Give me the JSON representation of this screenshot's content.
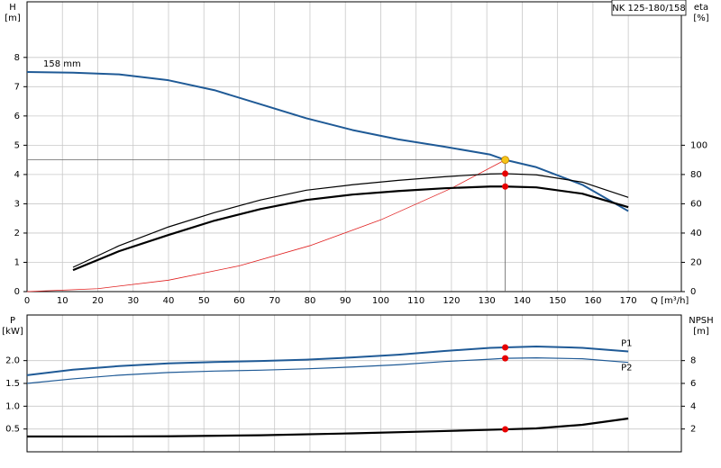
{
  "chart_data": [
    {
      "type": "line",
      "title": "NK 125-180/158",
      "xlabel": "Q [m³/h]",
      "ylabel": "H",
      "yunit": "[m]",
      "y2label": "eta",
      "y2unit": "[%]",
      "xlim": [
        0,
        185
      ],
      "xticks": [
        0,
        10,
        20,
        30,
        40,
        50,
        60,
        70,
        80,
        90,
        100,
        110,
        120,
        130,
        140,
        150,
        160,
        170
      ],
      "ylim": [
        0,
        9.9
      ],
      "yticks": [
        0,
        1,
        2,
        3,
        4,
        5,
        6,
        7,
        8
      ],
      "y2lim": [
        0,
        198
      ],
      "y2ticks": [
        0,
        20,
        40,
        60,
        80,
        100
      ],
      "grid": true,
      "duty_point": {
        "x": 135.2,
        "y": 4.5,
        "color": "#f5c518"
      },
      "series": [
        {
          "name": "158 mm",
          "name_position": "start-above",
          "color": "#1f5a96",
          "width": 2,
          "x": [
            0,
            13,
            26,
            40,
            53,
            66,
            79,
            92,
            105,
            118,
            131,
            135.2,
            144,
            157,
            170
          ],
          "values": [
            7.5,
            7.48,
            7.42,
            7.22,
            6.88,
            6.4,
            5.92,
            5.52,
            5.2,
            4.95,
            4.68,
            4.5,
            4.25,
            3.65,
            2.75
          ]
        },
        {
          "color": "#e02020",
          "width": 0.8,
          "x": [
            0,
            20,
            40,
            60,
            80,
            100,
            120,
            135.2
          ],
          "values": [
            0,
            0.1,
            0.39,
            0.88,
            1.57,
            2.45,
            3.53,
            4.5
          ]
        },
        {
          "axis": "y2",
          "color": "#000000",
          "width": 1.2,
          "duty_marker": true,
          "x": [
            13,
            26,
            40,
            53,
            66,
            79,
            92,
            105,
            118,
            131,
            135.2,
            144,
            157,
            170
          ],
          "values": [
            16.6,
            31.3,
            44.2,
            54,
            62.6,
            69.3,
            73,
            76,
            78.5,
            80.4,
            80.6,
            79.8,
            74.8,
            64.4
          ]
        },
        {
          "axis": "y2",
          "color": "#000000",
          "width": 2.2,
          "duty_marker": true,
          "x": [
            13,
            26,
            40,
            53,
            66,
            79,
            92,
            105,
            118,
            131,
            135.2,
            144,
            157,
            170
          ],
          "values": [
            14.7,
            27.6,
            38.7,
            48.5,
            56.4,
            62.6,
            66.3,
            68.7,
            70.6,
            71.8,
            71.8,
            71.2,
            66.9,
            57.7
          ]
        }
      ]
    },
    {
      "type": "line",
      "ylabel": "P",
      "yunit": "[kW]",
      "y2label": "NPSH",
      "y2unit": "[m]",
      "xlim": [
        0,
        185
      ],
      "ylim": [
        0,
        3.0
      ],
      "yticks": [
        0.5,
        {
          "value": 1.0,
          "label": "1.0"
        },
        1.5,
        {
          "value": 2.0,
          "label": "2.0"
        }
      ],
      "y2lim": [
        0,
        12
      ],
      "y2ticks": [
        2,
        4,
        6,
        8
      ],
      "grid": true,
      "duty_point": {
        "x": 135.2
      },
      "series": [
        {
          "name": "P1",
          "name_position": "end-above",
          "color": "#1f5a96",
          "width": 2,
          "duty_marker": true,
          "x": [
            0,
            13,
            26,
            40,
            53,
            66,
            79,
            92,
            105,
            118,
            131,
            135.2,
            144,
            157,
            170
          ],
          "values": [
            1.68,
            1.8,
            1.88,
            1.94,
            1.97,
            1.99,
            2.02,
            2.07,
            2.13,
            2.21,
            2.28,
            2.29,
            2.31,
            2.28,
            2.2
          ]
        },
        {
          "name": "P2",
          "name_position": "end-below",
          "color": "#1f5a96",
          "width": 1.2,
          "duty_marker": true,
          "x": [
            0,
            13,
            26,
            40,
            53,
            66,
            79,
            92,
            105,
            118,
            131,
            135.2,
            144,
            157,
            170
          ],
          "values": [
            1.5,
            1.6,
            1.68,
            1.74,
            1.77,
            1.79,
            1.82,
            1.86,
            1.91,
            1.98,
            2.03,
            2.05,
            2.06,
            2.04,
            1.96
          ]
        },
        {
          "axis": "y2",
          "color": "#000000",
          "width": 2.2,
          "duty_marker": true,
          "x": [
            0,
            13,
            40,
            66,
            92,
            118,
            135.2,
            144,
            157,
            170
          ],
          "values": [
            1.34,
            1.34,
            1.36,
            1.45,
            1.62,
            1.82,
            1.97,
            2.05,
            2.37,
            2.92
          ]
        }
      ]
    }
  ]
}
